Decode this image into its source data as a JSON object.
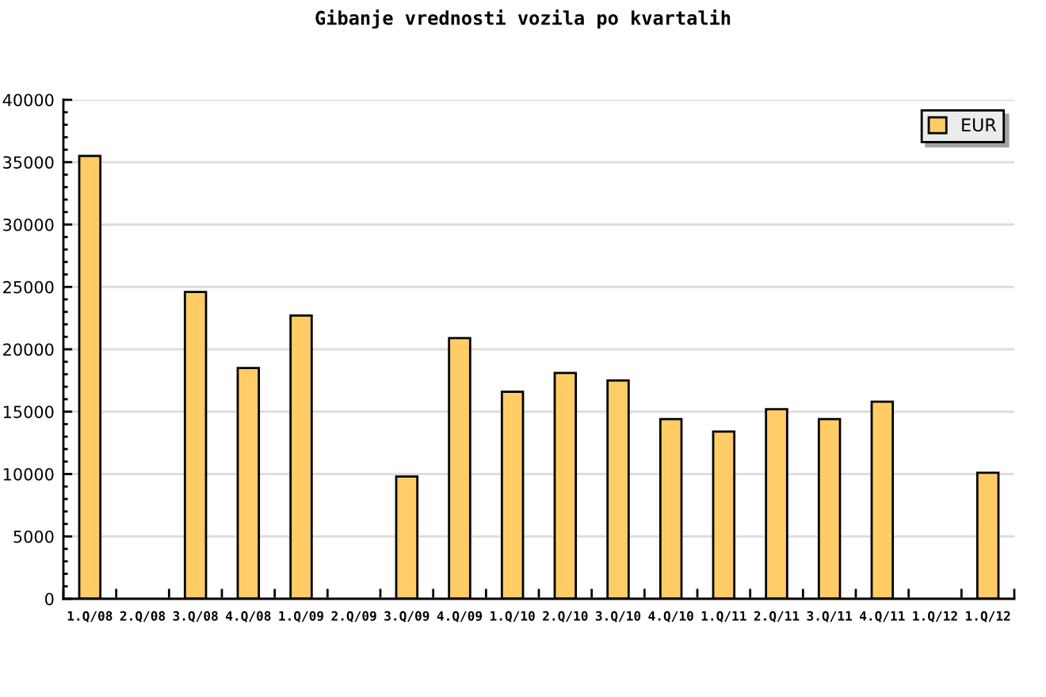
{
  "chart_data": {
    "type": "bar",
    "title": "Gibanje vrednosti vozila po kvartalih",
    "categories": [
      "1.Q/08",
      "2.Q/08",
      "3.Q/08",
      "4.Q/08",
      "1.Q/09",
      "2.Q/09",
      "3.Q/09",
      "4.Q/09",
      "1.Q/10",
      "2.Q/10",
      "3.Q/10",
      "4.Q/10",
      "1.Q/11",
      "2.Q/11",
      "3.Q/11",
      "4.Q/11",
      "1.Q/12",
      "1.Q/12"
    ],
    "series": [
      {
        "name": "EUR",
        "color": "#ffcc66",
        "values": [
          35500,
          null,
          24600,
          18500,
          22700,
          null,
          9800,
          20900,
          16600,
          18100,
          17500,
          14400,
          13400,
          15200,
          14400,
          15800,
          null,
          10100
        ]
      }
    ],
    "ylim": [
      0,
      40000
    ],
    "yticks": [
      0,
      5000,
      10000,
      15000,
      20000,
      25000,
      30000,
      35000,
      40000
    ],
    "grid": "y",
    "legend": "top right"
  }
}
